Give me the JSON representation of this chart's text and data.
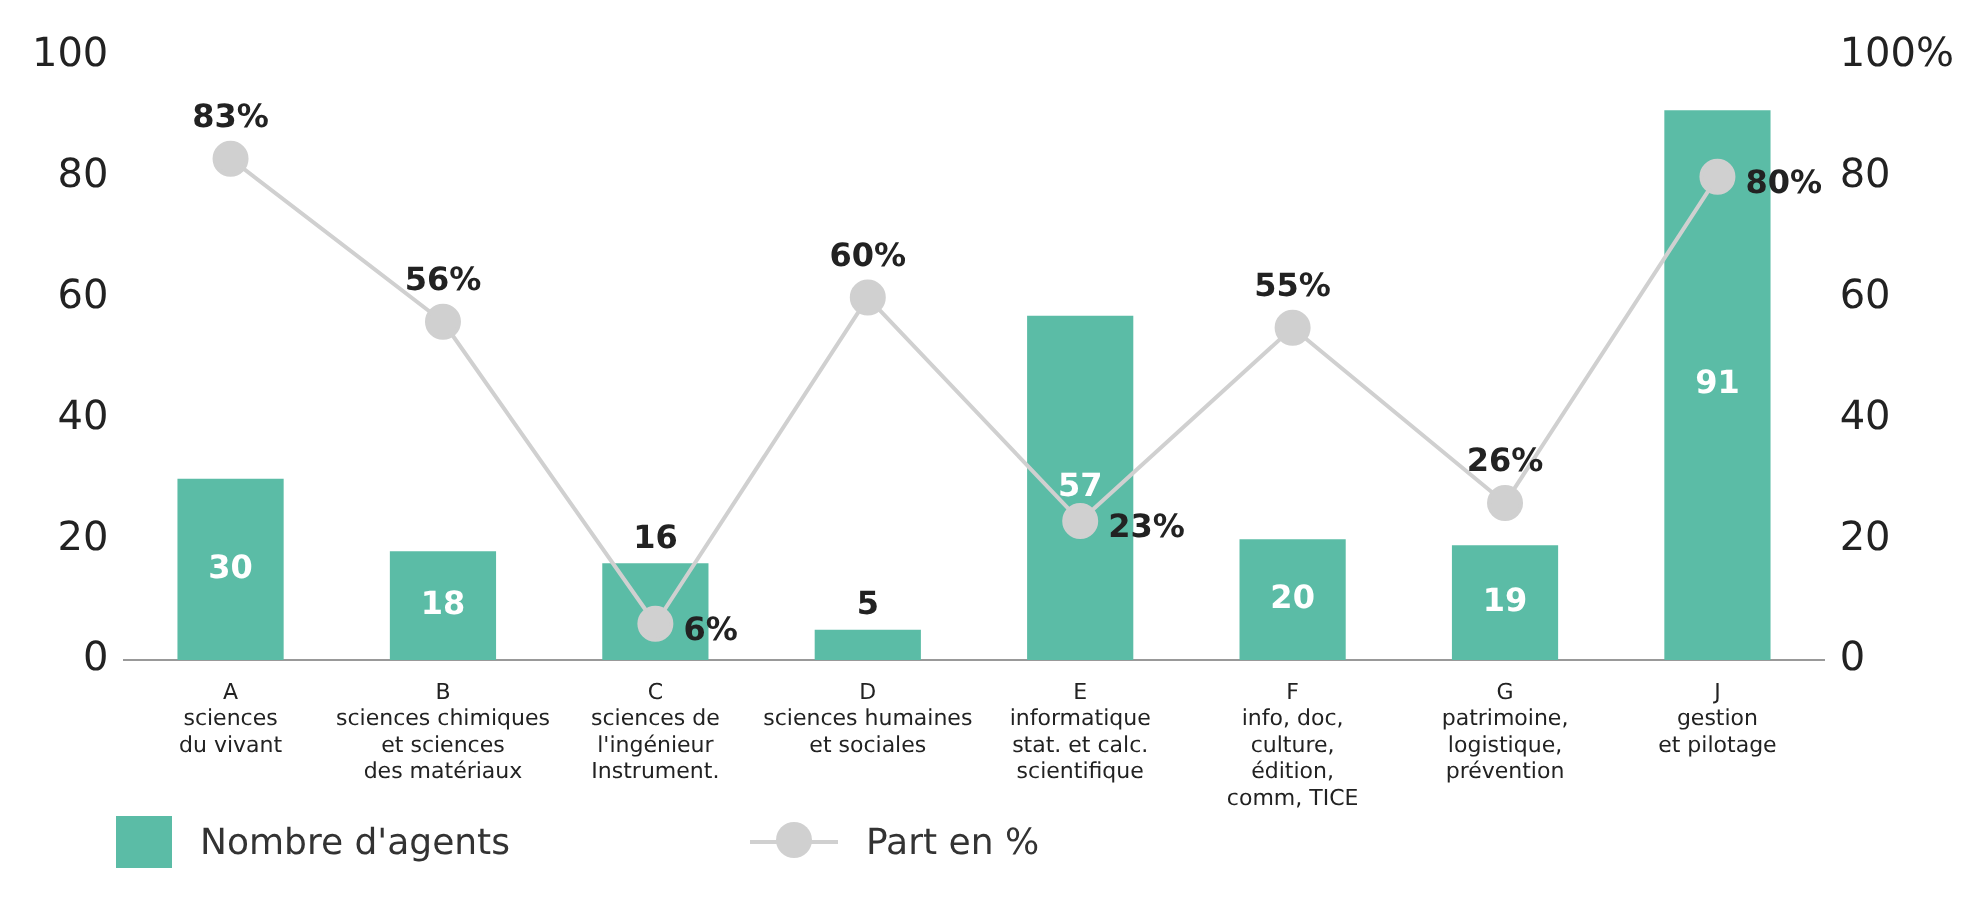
{
  "chart_data": {
    "type": "bar",
    "categories": [
      "A\nsciences\ndu vivant",
      "B\nsciences chimiques\net sciences\ndes matériaux",
      "C\nsciences de\nl'ingénieur\nInstrument.",
      "D\nsciences humaines\net sociales",
      "E\ninformatique\nstat. et calc.\nscientifique",
      "F\ninfo, doc,\nculture,\nédition,\ncomm, TICE",
      "G\npatrimoine,\nlogistique,\nprévention",
      "J\ngestion\net pilotage"
    ],
    "series": [
      {
        "name": "Nombre d'agents",
        "color": "#5bbca6",
        "values": [
          30,
          18,
          16,
          5,
          57,
          20,
          19,
          91
        ],
        "value_labels": [
          "30",
          "18",
          "16",
          "5",
          "57",
          "20",
          "19",
          "91"
        ]
      },
      {
        "name": "Part en %",
        "type": "line",
        "axis": "y2",
        "color": "#d0d0d0",
        "marker": "circle",
        "values": [
          83,
          56,
          6,
          60,
          23,
          55,
          26,
          80
        ],
        "value_labels": [
          "83%",
          "56%",
          "6%",
          "60%",
          "23%",
          "55%",
          "26%",
          "80%"
        ]
      }
    ],
    "ylim": [
      0,
      100
    ],
    "yticks": [
      0,
      20,
      40,
      60,
      80,
      100
    ],
    "y2lim": [
      0,
      100
    ],
    "y2ticks": [
      0,
      20,
      40,
      60,
      80,
      {
        "value": 100,
        "label": "100%"
      }
    ],
    "grid": false,
    "legend": "bottom left"
  }
}
